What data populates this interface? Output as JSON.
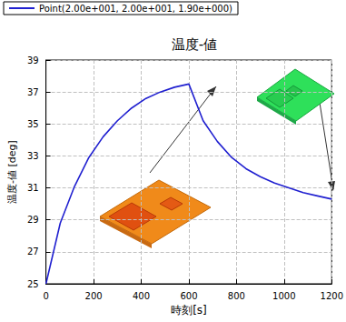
{
  "chart_data": {
    "type": "line",
    "title": "温度-値",
    "x_label": "時刻[s]",
    "y_label": "温度-値 [deg]",
    "x": [
      0,
      60,
      120,
      180,
      240,
      300,
      360,
      420,
      480,
      540,
      600,
      660,
      720,
      780,
      840,
      900,
      960,
      1020,
      1080,
      1140,
      1200
    ],
    "series": [
      {
        "name": "Point(2.00e+001, 2.00e+001, 1.90e+000)",
        "color": "#2020d0",
        "values": [
          25.0,
          28.8,
          31.1,
          32.9,
          34.2,
          35.2,
          36.0,
          36.6,
          37.0,
          37.3,
          37.5,
          35.2,
          33.9,
          32.9,
          32.2,
          31.7,
          31.3,
          31.0,
          30.7,
          30.5,
          30.3
        ],
        "marker": "none",
        "line_style": "solid"
      }
    ],
    "xlim": [
      0,
      1200
    ],
    "xticks": [
      0,
      200,
      400,
      600,
      800,
      1000,
      1200
    ],
    "ylim": [
      25,
      39
    ],
    "yticks": [
      25,
      27,
      29,
      31,
      33,
      35,
      37,
      39
    ],
    "grid": true,
    "legend": "top-left"
  }
}
